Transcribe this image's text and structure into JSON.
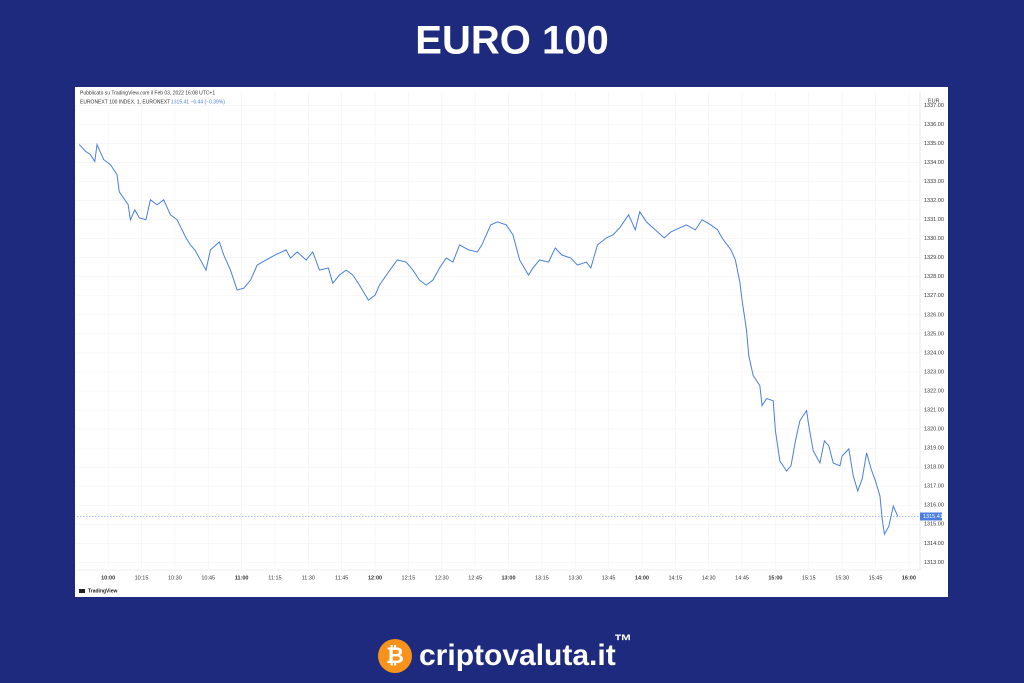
{
  "title": "EURO 100",
  "footer": {
    "brand": "criptovaluta.it",
    "trademark": "™"
  },
  "chart_data": {
    "type": "line",
    "published": "Pubblicato su TradingView.com il Feb 03, 2022 16:08 UTC+1",
    "symbol": "EURONEXT 100 INDEX, 1, EURONEXT",
    "quote": "1315.41 −6.44 (−0.39%)",
    "currency": "EUR",
    "watermark": "TradingView",
    "x": [
      "09:47",
      "09:50",
      "09:52",
      "09:54",
      "09:55",
      "09:58",
      "10:01",
      "10:04",
      "10:05",
      "10:09",
      "10:10",
      "10:12",
      "10:14",
      "10:17",
      "10:19",
      "10:22",
      "10:25",
      "10:28",
      "10:31",
      "10:35",
      "10:37",
      "10:39",
      "10:41",
      "10:44",
      "10:46",
      "10:50",
      "10:52",
      "10:55",
      "10:58",
      "11:01",
      "11:04",
      "11:07",
      "11:11",
      "11:15",
      "11:20",
      "11:22",
      "11:25",
      "11:29",
      "11:32",
      "11:35",
      "11:39",
      "11:41",
      "11:44",
      "11:47",
      "11:50",
      "11:53",
      "11:57",
      "12:00",
      "12:02",
      "12:06",
      "12:10",
      "12:14",
      "12:17",
      "12:20",
      "12:23",
      "12:26",
      "12:29",
      "12:32",
      "12:35",
      "12:38",
      "12:42",
      "12:46",
      "12:48",
      "12:52",
      "12:55",
      "12:59",
      "13:02",
      "13:05",
      "13:09",
      "13:11",
      "13:14",
      "13:18",
      "13:21",
      "13:24",
      "13:28",
      "13:31",
      "13:35",
      "13:37",
      "13:40",
      "13:44",
      "13:47",
      "13:50",
      "13:54",
      "13:57",
      "13:59",
      "14:02",
      "14:06",
      "14:10",
      "14:13",
      "14:17",
      "14:20",
      "14:24",
      "14:27",
      "14:31",
      "14:34",
      "14:36",
      "14:40",
      "14:42",
      "14:44",
      "14:45",
      "14:47",
      "14:48",
      "14:50",
      "14:53",
      "14:54",
      "14:56",
      "14:59",
      "15:00",
      "15:02",
      "15:05",
      "15:07",
      "15:09",
      "15:11",
      "15:14",
      "15:15",
      "15:17",
      "15:20",
      "15:22",
      "15:24",
      "15:26",
      "15:29",
      "15:30",
      "15:33",
      "15:35",
      "15:37",
      "15:39",
      "15:41",
      "15:43",
      "15:45",
      "15:47",
      "15:48",
      "15:49",
      "15:51",
      "15:53",
      "15:55"
    ],
    "series": [
      {
        "color": "#4a7fe0",
        "values": [
          1334.94,
          1334.57,
          1334.42,
          1334.05,
          1334.94,
          1334.15,
          1333.89,
          1333.36,
          1332.46,
          1331.78,
          1330.99,
          1331.51,
          1331.09,
          1330.99,
          1332.04,
          1331.78,
          1332.04,
          1331.25,
          1330.99,
          1330.04,
          1329.67,
          1329.41,
          1328.98,
          1328.35,
          1329.41,
          1329.83,
          1329.14,
          1328.35,
          1327.3,
          1327.4,
          1327.82,
          1328.61,
          1328.88,
          1329.14,
          1329.41,
          1328.98,
          1329.3,
          1328.88,
          1329.3,
          1328.35,
          1328.46,
          1327.66,
          1328.09,
          1328.35,
          1328.09,
          1327.56,
          1326.77,
          1327.03,
          1327.56,
          1328.24,
          1328.88,
          1328.77,
          1328.35,
          1327.82,
          1327.56,
          1327.82,
          1328.46,
          1328.98,
          1328.77,
          1329.67,
          1329.41,
          1329.3,
          1329.67,
          1330.72,
          1330.88,
          1330.72,
          1330.2,
          1328.88,
          1328.09,
          1328.46,
          1328.88,
          1328.77,
          1329.51,
          1329.14,
          1328.98,
          1328.61,
          1328.77,
          1328.46,
          1329.67,
          1330.04,
          1330.2,
          1330.57,
          1331.25,
          1330.46,
          1331.41,
          1330.88,
          1330.46,
          1330.04,
          1330.35,
          1330.57,
          1330.72,
          1330.46,
          1330.99,
          1330.72,
          1330.46,
          1330.04,
          1329.41,
          1328.88,
          1327.72,
          1326.77,
          1325.19,
          1323.87,
          1322.81,
          1322.28,
          1321.23,
          1321.6,
          1321.49,
          1319.91,
          1318.33,
          1317.8,
          1318.07,
          1319.38,
          1320.44,
          1320.97,
          1320.18,
          1318.86,
          1318.22,
          1319.38,
          1319.12,
          1318.22,
          1318.07,
          1318.59,
          1318.96,
          1317.54,
          1316.75,
          1317.38,
          1318.75,
          1317.91,
          1317.27,
          1316.48,
          1315.27,
          1314.48,
          1314.9,
          1315.96,
          1315.41
        ]
      }
    ],
    "xlim": [
      "09:46",
      "16:05"
    ],
    "xticks": [
      "10:00",
      "10:15",
      "10:30",
      "10:45",
      "11:00",
      "11:15",
      "11:30",
      "11:45",
      "12:00",
      "12:15",
      "12:30",
      "12:45",
      "13:00",
      "13:15",
      "13:30",
      "13:45",
      "14:00",
      "14:15",
      "14:30",
      "14:45",
      "15:00",
      "15:15",
      "15:30",
      "15:45",
      "16:00"
    ],
    "ylim": [
      1312.6,
      1337.7
    ],
    "yticks": [
      {
        "value": 1313,
        "label": "1313.00"
      },
      {
        "value": 1314,
        "label": "1314.00"
      },
      {
        "value": 1315,
        "label": "1315.00"
      },
      {
        "value": 1316,
        "label": "1316.00"
      },
      {
        "value": 1317,
        "label": "1317.00"
      },
      {
        "value": 1318,
        "label": "1318.00"
      },
      {
        "value": 1319,
        "label": "1319.00"
      },
      {
        "value": 1320,
        "label": "1320.00"
      },
      {
        "value": 1321,
        "label": "1321.00"
      },
      {
        "value": 1322,
        "label": "1322.00"
      },
      {
        "value": 1323,
        "label": "1323.00"
      },
      {
        "value": 1324,
        "label": "1324.00"
      },
      {
        "value": 1325,
        "label": "1325.00"
      },
      {
        "value": 1326,
        "label": "1326.00"
      },
      {
        "value": 1327,
        "label": "1327.00"
      },
      {
        "value": 1328,
        "label": "1328.00"
      },
      {
        "value": 1329,
        "label": "1329.00"
      },
      {
        "value": 1330,
        "label": "1330.00"
      },
      {
        "value": 1331,
        "label": "1331.00"
      },
      {
        "value": 1332,
        "label": "1332.00"
      },
      {
        "value": 1333,
        "label": "1333.00"
      },
      {
        "value": 1334,
        "label": "1334.00"
      },
      {
        "value": 1335,
        "label": "1335.00"
      },
      {
        "value": 1336,
        "label": "1336.00"
      },
      {
        "value": 1337,
        "label": "1337.00"
      }
    ],
    "grid": true
  }
}
